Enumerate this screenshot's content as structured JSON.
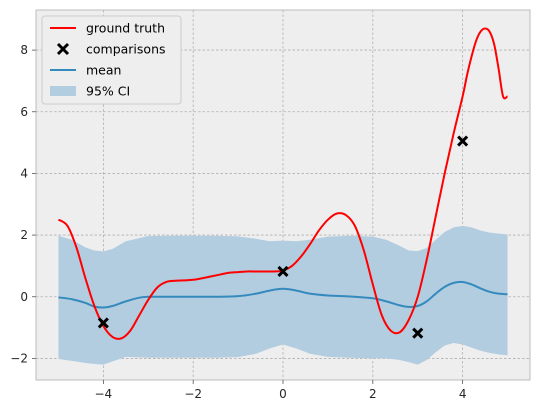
{
  "chart_data": {
    "type": "line",
    "title": "",
    "xlabel": "",
    "ylabel": "",
    "xlim": [
      -5.5,
      5.5
    ],
    "ylim": [
      -2.7,
      9.3
    ],
    "xticks": [
      -4,
      -2,
      0,
      2,
      4
    ],
    "yticks": [
      -2,
      0,
      2,
      4,
      6,
      8
    ],
    "grid": true,
    "legend_position": "upper-left",
    "colors": {
      "ground_truth": "#ff0000",
      "comparisons": "#000000",
      "mean": "#348abd",
      "ci": "#b3cde0",
      "axes_background": "#eeeeee",
      "grid": "#b0b0b0",
      "frame": "#bcbcbc"
    },
    "legend": [
      "ground truth",
      "comparisons",
      "mean",
      "95% CI"
    ],
    "ground_truth": {
      "x": [
        -5.0,
        -4.8,
        -4.6,
        -4.4,
        -4.2,
        -4.0,
        -3.8,
        -3.6,
        -3.4,
        -3.2,
        -3.0,
        -2.8,
        -2.6,
        -2.4,
        -2.2,
        -2.0,
        -1.8,
        -1.6,
        -1.4,
        -1.2,
        -1.0,
        -0.8,
        -0.6,
        -0.4,
        -0.2,
        0.0,
        0.2,
        0.4,
        0.6,
        0.8,
        1.0,
        1.2,
        1.4,
        1.6,
        1.8,
        2.0,
        2.2,
        2.4,
        2.6,
        2.8,
        3.0,
        3.2,
        3.4,
        3.6,
        3.8,
        4.0,
        4.1,
        4.2,
        4.3,
        4.4,
        4.5,
        4.6,
        4.7,
        4.8,
        4.9,
        5.0
      ],
      "y": [
        2.5,
        2.3,
        1.6,
        0.6,
        -0.3,
        -0.95,
        -1.3,
        -1.35,
        -1.1,
        -0.6,
        -0.1,
        0.3,
        0.48,
        0.52,
        0.53,
        0.55,
        0.6,
        0.66,
        0.72,
        0.78,
        0.8,
        0.82,
        0.82,
        0.82,
        0.82,
        0.85,
        1.0,
        1.3,
        1.7,
        2.15,
        2.5,
        2.7,
        2.65,
        2.3,
        1.5,
        0.4,
        -0.6,
        -1.1,
        -1.15,
        -0.75,
        0.0,
        1.2,
        2.6,
        4.0,
        5.3,
        6.5,
        7.2,
        7.8,
        8.3,
        8.6,
        8.7,
        8.6,
        8.2,
        7.4,
        6.5,
        6.5
      ]
    },
    "mean": {
      "x": [
        -5.0,
        -4.7,
        -4.4,
        -4.2,
        -4.0,
        -3.8,
        -3.5,
        -3.2,
        -3.0,
        -2.5,
        -2.0,
        -1.5,
        -1.0,
        -0.6,
        -0.3,
        0.0,
        0.3,
        0.6,
        1.0,
        1.5,
        2.0,
        2.3,
        2.6,
        2.8,
        3.0,
        3.2,
        3.4,
        3.6,
        3.8,
        4.0,
        4.2,
        4.4,
        4.6,
        4.8,
        5.0
      ],
      "y": [
        -0.02,
        -0.08,
        -0.2,
        -0.32,
        -0.35,
        -0.3,
        -0.15,
        -0.03,
        0.0,
        0.0,
        0.0,
        0.0,
        0.02,
        0.1,
        0.2,
        0.26,
        0.2,
        0.1,
        0.04,
        0.01,
        -0.05,
        -0.15,
        -0.28,
        -0.33,
        -0.3,
        -0.15,
        0.1,
        0.32,
        0.45,
        0.48,
        0.4,
        0.27,
        0.16,
        0.1,
        0.08
      ]
    },
    "ci_95": {
      "x": [
        -5.0,
        -4.7,
        -4.4,
        -4.2,
        -4.0,
        -3.8,
        -3.5,
        -3.0,
        -2.5,
        -2.0,
        -1.5,
        -1.0,
        -0.6,
        -0.3,
        0.0,
        0.3,
        0.6,
        1.0,
        1.5,
        2.0,
        2.3,
        2.6,
        2.8,
        3.0,
        3.2,
        3.4,
        3.6,
        3.8,
        4.0,
        4.2,
        4.4,
        4.6,
        4.8,
        5.0
      ],
      "lower": [
        -2.02,
        -2.08,
        -2.15,
        -2.18,
        -2.2,
        -2.1,
        -1.95,
        -1.98,
        -1.98,
        -1.98,
        -1.98,
        -1.96,
        -1.85,
        -1.68,
        -1.55,
        -1.68,
        -1.85,
        -1.95,
        -1.98,
        -2.0,
        -2.0,
        -2.05,
        -2.12,
        -2.2,
        -2.05,
        -1.8,
        -1.58,
        -1.5,
        -1.55,
        -1.65,
        -1.75,
        -1.82,
        -1.87,
        -1.9
      ],
      "upper": [
        1.98,
        1.85,
        1.6,
        1.5,
        1.47,
        1.55,
        1.8,
        1.97,
        1.98,
        1.98,
        1.98,
        1.96,
        1.88,
        1.8,
        1.82,
        1.8,
        1.85,
        1.95,
        1.98,
        1.95,
        1.85,
        1.65,
        1.5,
        1.48,
        1.58,
        1.85,
        2.1,
        2.25,
        2.3,
        2.25,
        2.15,
        2.08,
        2.05,
        2.02
      ]
    },
    "comparisons": {
      "x": [
        -4.0,
        0.0,
        3.0,
        4.0
      ],
      "y": [
        -0.85,
        0.82,
        -1.18,
        5.05
      ]
    }
  }
}
